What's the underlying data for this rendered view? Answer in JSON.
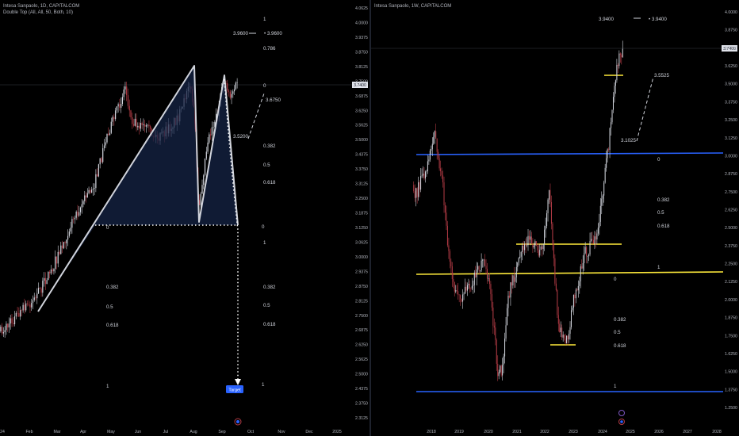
{
  "left": {
    "title": "Intesa Sanpaolo, 1D, CAPITALCOM",
    "indicator": "Double Top (All, All, 50, Both, 10)",
    "chart_data": {
      "type": "candlestick",
      "ylim": [
        2.3,
        4.08
      ],
      "y_ticks": [
        "4.0625",
        "4.0000",
        "3.9375",
        "3.8750",
        "3.8125",
        "3.7500",
        "3.6875",
        "3.6250",
        "3.5625",
        "3.5000",
        "3.4375",
        "3.3750",
        "3.3125",
        "3.2500",
        "3.1875",
        "3.1250",
        "3.0625",
        "3.0000",
        "2.9375",
        "2.8750",
        "2.8125",
        "2.7500",
        "2.6875",
        "2.6250",
        "2.5625",
        "2.5000",
        "2.4375",
        "2.3750",
        "2.3125"
      ],
      "x_labels": [
        "24",
        "Feb",
        "Mar",
        "Apr",
        "May",
        "Jun",
        "Jul",
        "Aug",
        "Sep",
        "Oct",
        "Nov",
        "Dec",
        "2025"
      ],
      "last_price": "3.7400",
      "projection_labels": [
        "3.9600",
        "3.9600",
        "3.6750",
        "3.5200"
      ],
      "fib_levels_upper": [
        "1",
        "0.786",
        "0",
        "0.382",
        "0.5",
        "0.618",
        "0",
        "1",
        "0.382",
        "0.5",
        "0.618",
        "1"
      ],
      "fib_levels_lower": [
        "0",
        "0.382",
        "0.5",
        "0.618",
        "1"
      ],
      "target_label": "Target"
    }
  },
  "right": {
    "title": "Intesa Sanpaolo, 1W, CAPITALCOM",
    "chart_data": {
      "type": "candlestick",
      "ylim": [
        1.22,
        4.08
      ],
      "y_ticks": [
        "4.0000",
        "3.8750",
        "3.7500",
        "3.6250",
        "3.5000",
        "3.3750",
        "3.2500",
        "3.1250",
        "3.0000",
        "2.8750",
        "2.7500",
        "2.6250",
        "2.5000",
        "2.3750",
        "2.2500",
        "2.1250",
        "2.0000",
        "1.8750",
        "1.7500",
        "1.6250",
        "1.5000",
        "1.3750",
        "1.2500"
      ],
      "x_labels": [
        "2018",
        "2019",
        "2020",
        "2021",
        "2022",
        "2023",
        "2024",
        "2025",
        "2026",
        "2027",
        "2028"
      ],
      "last_price": "3.7400",
      "projection_labels": [
        "3.9400",
        "3.9400",
        "3.5525",
        "3.1025"
      ],
      "fib_levels_a": [
        "0",
        "0.382",
        "0.5",
        "0.618"
      ],
      "fib_levels_b": [
        "1",
        "0",
        "0.382",
        "0.5",
        "0.618",
        "1"
      ]
    }
  },
  "colors": {
    "up": "#d1d4dc",
    "down": "#b23b45",
    "blue": "#2962ff",
    "yellow": "#ffeb3b",
    "pattern": "#d1d4dc",
    "label_bg": "#e0e3eb"
  }
}
